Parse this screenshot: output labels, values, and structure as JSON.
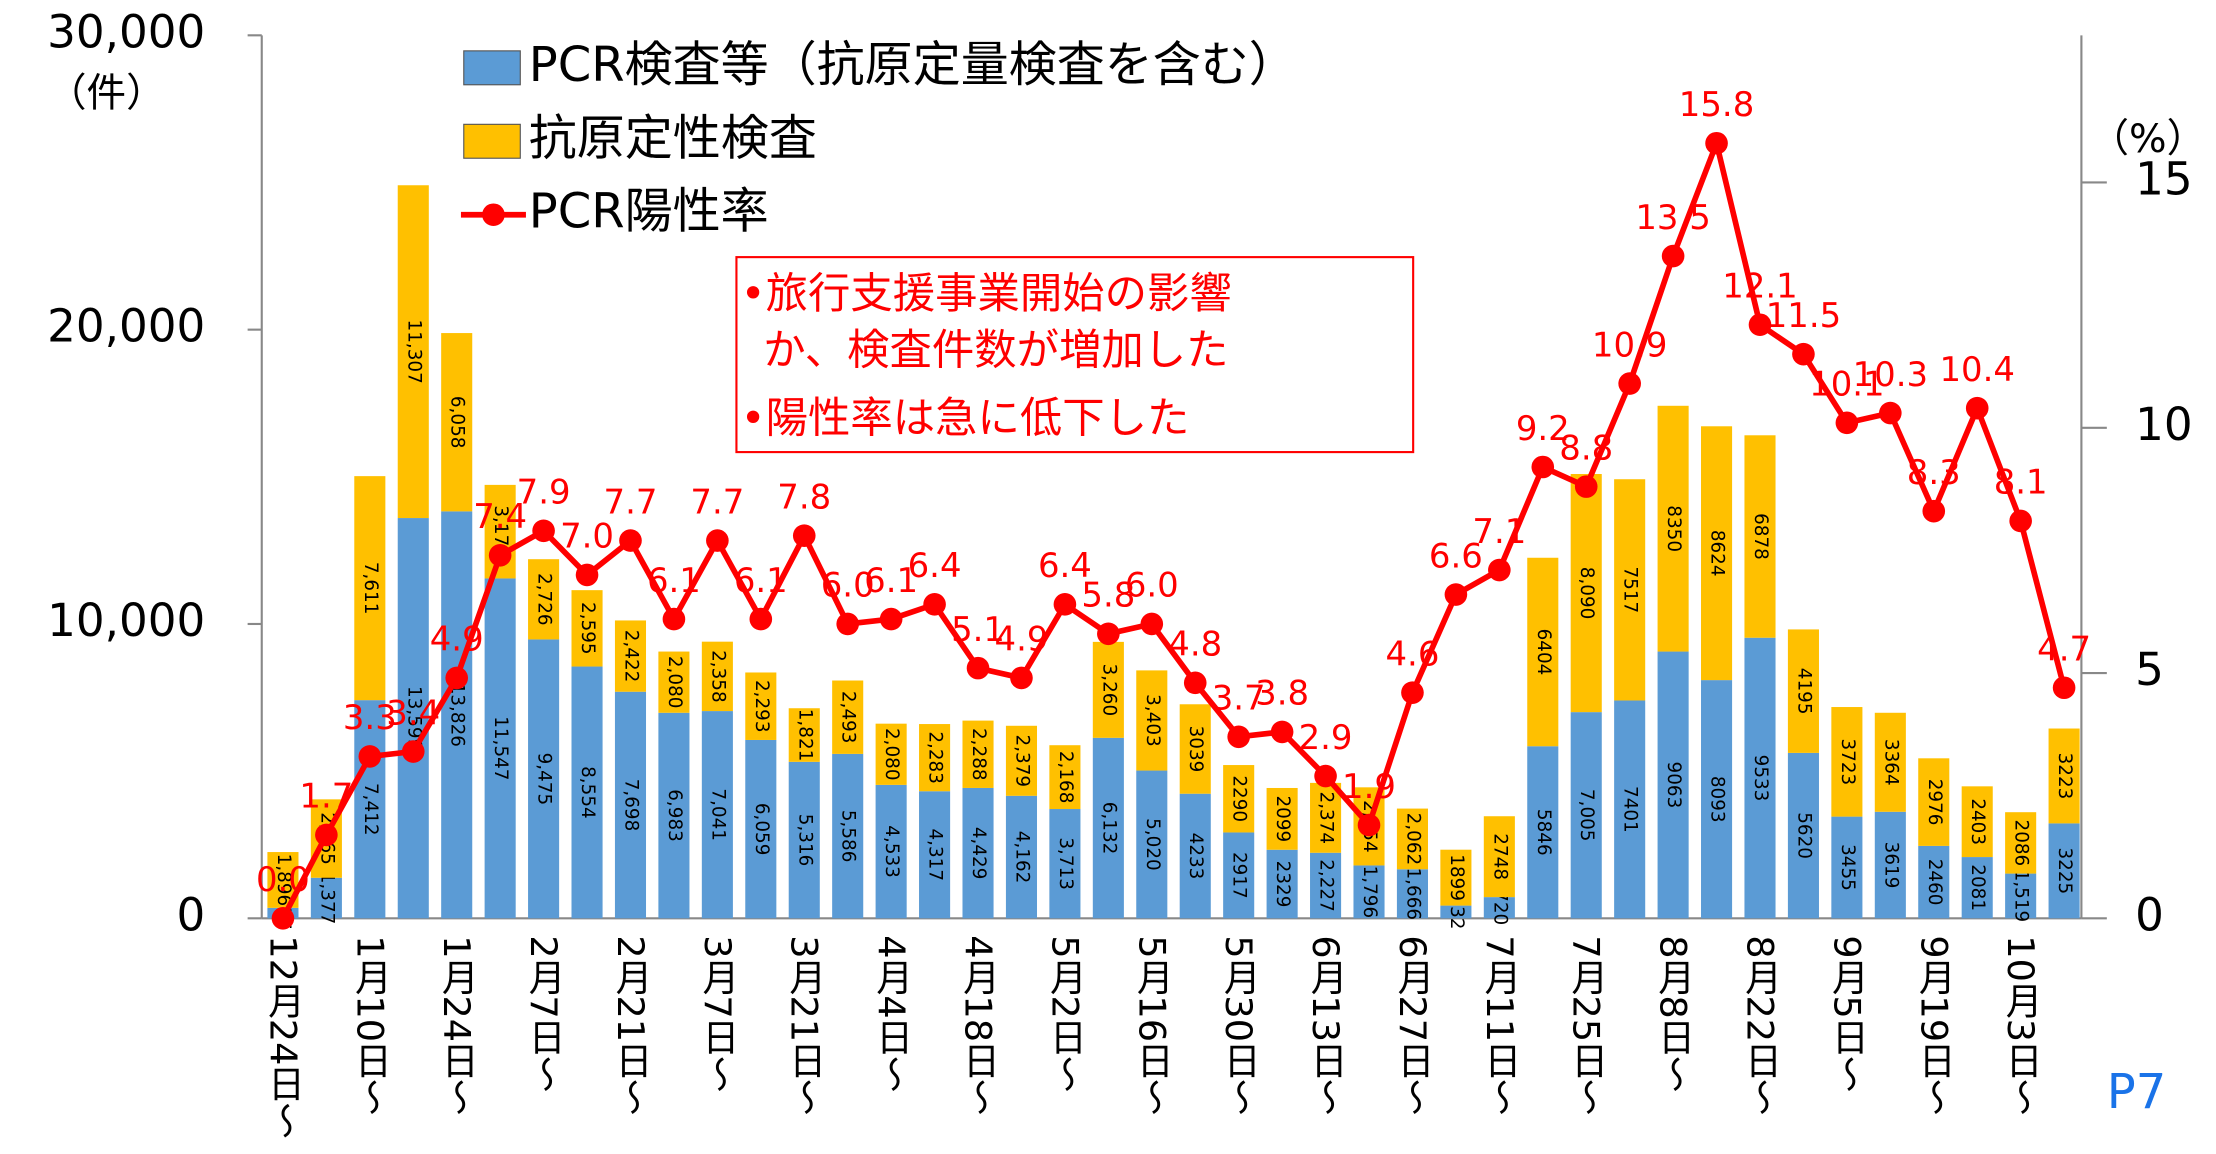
{
  "chart_data": {
    "type": "bar",
    "y_label": "（件）",
    "y2_label": "（%）",
    "categories": [
      "12月24日〜",
      null,
      "1月10日〜",
      null,
      "1月24日〜",
      null,
      "2月7日〜",
      null,
      "2月21日〜",
      null,
      "3月7日〜",
      null,
      "3月21日〜",
      null,
      "4月4日〜",
      null,
      "4月18日〜",
      null,
      "5月2日〜",
      null,
      "5月16日〜",
      null,
      "5月30日〜",
      null,
      "6月13日〜",
      null,
      "6月27日〜",
      null,
      "7月11日〜",
      null,
      "7月25日〜",
      null,
      "8月8日〜",
      null,
      "8月22日〜",
      null,
      "9月5日〜",
      null,
      "9月19日〜",
      null,
      "10月3日〜",
      null
    ],
    "series": [
      {
        "name": "PCR検査等（抗原定量検査を含む）",
        "color": "#5b9bd5",
        "values": [
          355,
          1377,
          7412,
          13599,
          13826,
          11547,
          9475,
          8554,
          7698,
          6983,
          7041,
          6059,
          5316,
          5586,
          4533,
          4317,
          4429,
          4162,
          3713,
          6132,
          5020,
          4233,
          2917,
          2329,
          2227,
          1796,
          1666,
          432,
          720,
          5846,
          7005,
          7401,
          9063,
          8093,
          9533,
          5620,
          3455,
          3619,
          2460,
          2081,
          1519,
          3225
        ],
        "value_labels": [
          "355",
          "1,377",
          "7,412",
          "13,599",
          "13,826",
          "11,547",
          "9,475",
          "8,554",
          "7,698",
          "6,983",
          "7,041",
          "6,059",
          "5,316",
          "5,586",
          "4,533",
          "4,317",
          "4,429",
          "4,162",
          "3,713",
          "6,132",
          "5,020",
          "4233",
          "2917",
          "2329",
          "2,227",
          "1,796",
          "1,666",
          "432",
          "720",
          "5846",
          "7,005",
          "7401",
          "9063",
          "8093",
          "9533",
          "5620",
          "3455",
          "3619",
          "2460",
          "2081",
          "1,519",
          "3225"
        ]
      },
      {
        "name": "抗原定性検査",
        "color": "#ffc000",
        "values": [
          1896,
          2665,
          7611,
          11307,
          6058,
          3179,
          2726,
          2595,
          2422,
          2080,
          2358,
          2293,
          1821,
          2493,
          2080,
          2283,
          2288,
          2379,
          2168,
          3260,
          3403,
          3039,
          2290,
          2099,
          2374,
          2654,
          2062,
          1899,
          2748,
          6404,
          8090,
          7517,
          8350,
          8624,
          6878,
          4195,
          3723,
          3364,
          2976,
          2403,
          2086,
          3223
        ],
        "value_labels": [
          "1,896",
          "2,665",
          "7,611",
          "11,307",
          "6,058",
          "3,179",
          "2,726",
          "2,595",
          "2,422",
          "2,080",
          "2,358",
          "2,293",
          "1,821",
          "2,493",
          "2,080",
          "2,283",
          "2,288",
          "2,379",
          "2,168",
          "3,260",
          "3,403",
          "3039",
          "2290",
          "2099",
          "2,374",
          "2,654",
          "2,062",
          "1899",
          "2748",
          "6404",
          "8,090",
          "7517",
          "8350",
          "8624",
          "6878",
          "4195",
          "3723",
          "3364",
          "2976",
          "2403",
          "2086",
          "3223"
        ]
      },
      {
        "name": "PCR陽性率",
        "color": "#ff0000",
        "type": "line",
        "axis": "y2",
        "values": [
          0.0,
          1.7,
          3.3,
          3.4,
          4.9,
          7.4,
          7.9,
          7.0,
          7.7,
          6.1,
          7.7,
          6.1,
          7.8,
          6.0,
          6.1,
          6.4,
          5.1,
          4.9,
          6.4,
          5.8,
          6.0,
          4.8,
          3.7,
          3.8,
          2.9,
          1.9,
          4.6,
          6.6,
          7.1,
          9.2,
          8.8,
          10.9,
          13.5,
          15.8,
          12.1,
          11.5,
          10.1,
          10.3,
          8.3,
          10.4,
          8.1,
          4.7
        ],
        "value_labels": [
          "0.0",
          "1.7",
          "3.3",
          "3.4",
          "4.9",
          "7.4",
          "7.9",
          "7.0",
          "7.7",
          "6.1",
          "7.7",
          "6.1",
          "7.8",
          "6.0",
          "6.1",
          "6.4",
          "5.1",
          "4.9",
          "6.4",
          "5.8",
          "6.0",
          "4.8",
          "3.7",
          "3.8",
          "2.9",
          "1.9",
          "4.6",
          "6.6",
          "7.1",
          "9.2",
          "8.8",
          "10.9",
          "13.5",
          "15.8",
          "12.1",
          "11.5",
          "10.1",
          "10.3",
          "8.3",
          "10.4",
          "8.1",
          "4.7"
        ]
      }
    ],
    "ylim": [
      0,
      30000
    ],
    "yticks": [
      0,
      {
        "value": 10000,
        "label": "10,000"
      },
      {
        "value": 20000,
        "label": "20,000"
      },
      {
        "value": 30000,
        "label": "30,000"
      }
    ],
    "y2lim": [
      0,
      18
    ],
    "y2ticks": [
      0,
      5,
      10,
      15
    ],
    "annotation": [
      "•旅行支援事業開始の影響",
      "か、検査件数が増加した",
      "•陽性率は急に低下した"
    ],
    "page_label": "P7"
  }
}
